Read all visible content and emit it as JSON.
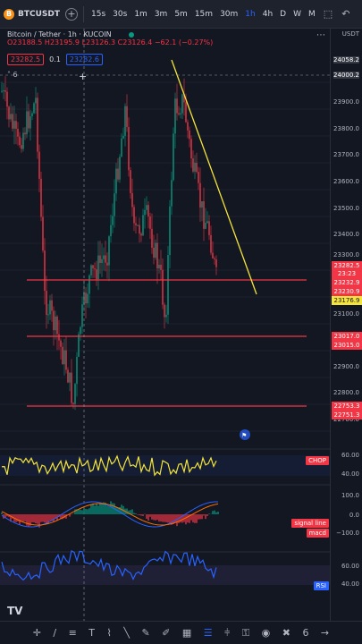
{
  "topbar": {
    "symbol": "BTCUSDT",
    "add_label": "+",
    "timeframes": [
      "15s",
      "30s",
      "1m",
      "3m",
      "5m",
      "15m",
      "30m",
      "1h",
      "4h",
      "D",
      "W",
      "M"
    ],
    "active_timeframe": "1h",
    "more_icon": "⋮"
  },
  "legend": {
    "title": "Bitcoin / Tether · 1h · KUCOIN",
    "ohlc": "O23188.5 H23195.9 L23126.3 C23126.4 −62.1 (−0.27%)",
    "sell_price": "23282.5",
    "spread": "0.1",
    "buy_price": "23282.6",
    "collapse": "˄ 6"
  },
  "price_axis": {
    "currency": "USDT",
    "labels": [
      "24058.2",
      "24000.2",
      "23900.0",
      "23800.0",
      "23700.0",
      "23600.0",
      "23500.0",
      "23400.0",
      "23300.0",
      "23100.0",
      "23000.0",
      "22900.0",
      "22800.0",
      "22700.0"
    ],
    "last_price": "23282.5",
    "countdown": "23:23",
    "tag_red_1": "23232.9",
    "tag_red_2": "23230.9",
    "tag_yellow": "23176.9",
    "tag_red_3": "23017.0",
    "tag_red_4": "23015.0",
    "tag_red_5": "22753.3",
    "tag_red_6": "22751.3"
  },
  "indicators": {
    "chop": {
      "name": "CHOP",
      "labels": [
        "60.00",
        "40.00"
      ]
    },
    "macd": {
      "signal_label": "signal line",
      "macd_label": "macd",
      "labels": [
        "100.0",
        "0.0",
        "−100.0"
      ]
    },
    "rsi": {
      "name": "RSI",
      "labels": [
        "60.00",
        "40.00"
      ]
    }
  },
  "colors": {
    "background": "#131722",
    "up": "#089981",
    "down": "#f23645",
    "trendline": "#f5e53b",
    "support": "#f23645",
    "chop_line": "#f5e53b",
    "rsi_line": "#2962ff"
  },
  "bottombar": {
    "icons": [
      "crosshair-icon",
      "trendline-icon",
      "fib-icon",
      "text-icon",
      "path-icon",
      "pattern-icon",
      "brush-icon",
      "pencil-icon",
      "emoji-icon",
      "ruler-icon",
      "zoom-icon",
      "layers-icon",
      "magnet-icon",
      "lock-icon",
      "eye-icon",
      "trash-icon"
    ],
    "page_num": "6",
    "arrow": "→"
  },
  "logo": "TV"
}
